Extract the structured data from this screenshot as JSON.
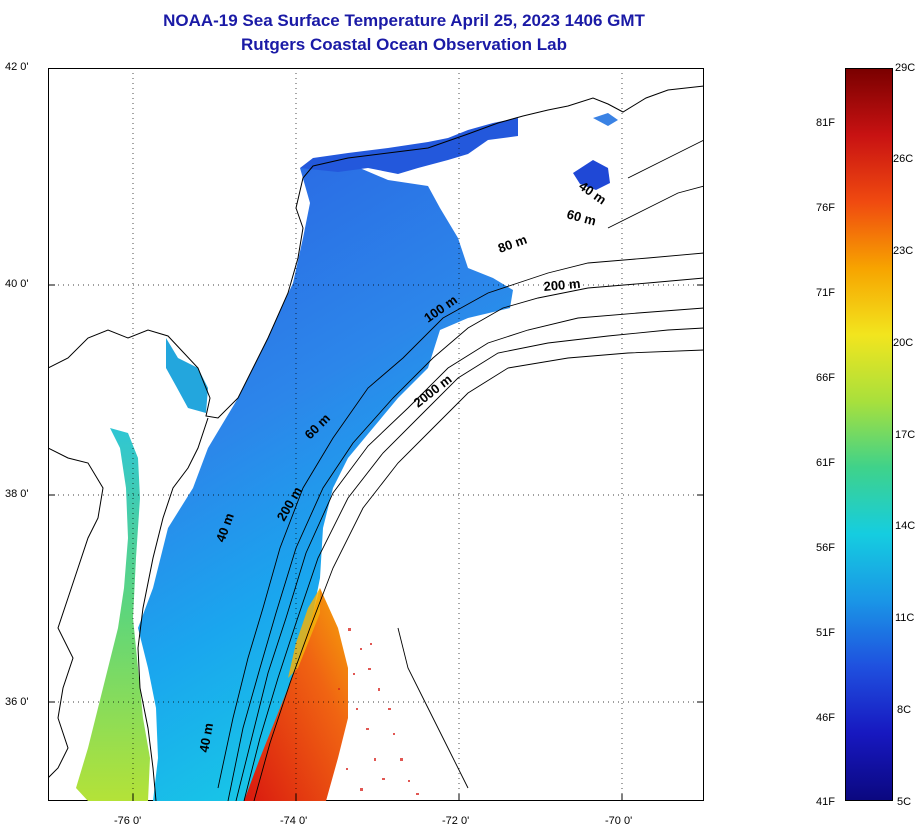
{
  "header": {
    "title": "NOAA-19 Sea Surface Temperature April 25, 2023 1406 GMT",
    "subtitle": "Rutgers Coastal Ocean Observation Lab"
  },
  "map": {
    "lat_labels": [
      "42 0'",
      "40 0'",
      "38 0'",
      "36 0'"
    ],
    "lon_labels": [
      "-76 0'",
      "-74 0'",
      "-72 0'",
      "-70 0'"
    ],
    "contour_labels": [
      "40 m",
      "60 m",
      "80 m",
      "200 m",
      "100 m",
      "2000 m",
      "60 m",
      "200 m",
      "40 m",
      "40 m"
    ],
    "colors": {
      "cold": "#1e5be0",
      "mid": "#19c9e6",
      "warm": "#e8201a",
      "land": "#ffffff",
      "coast": "#000000"
    }
  },
  "colorbar": {
    "fahrenheit_labels": [
      "81F",
      "76F",
      "71F",
      "66F",
      "61F",
      "56F",
      "51F",
      "46F",
      "41F"
    ],
    "celsius_labels": [
      "29C",
      "26C",
      "23C",
      "20C",
      "17C",
      "14C",
      "11C",
      "8C",
      "5C"
    ],
    "gradient": [
      "#7a0000",
      "#c81212",
      "#f04a10",
      "#f7a400",
      "#f2e51e",
      "#a8e03c",
      "#3fd28a",
      "#15cde0",
      "#1a96e6",
      "#1f50df",
      "#1718c0",
      "#0b0880"
    ]
  }
}
